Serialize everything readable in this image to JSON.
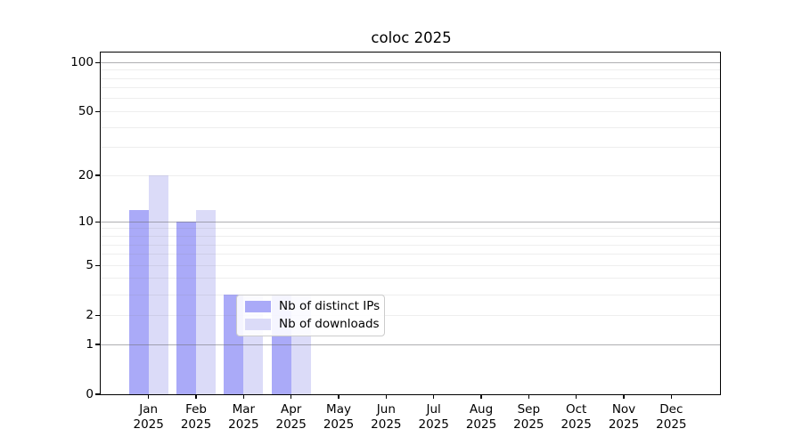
{
  "chart_data": {
    "type": "bar",
    "title": "coloc 2025",
    "x_labels": [
      {
        "m": "Jan",
        "y": "2025"
      },
      {
        "m": "Feb",
        "y": "2025"
      },
      {
        "m": "Mar",
        "y": "2025"
      },
      {
        "m": "Apr",
        "y": "2025"
      },
      {
        "m": "May",
        "y": "2025"
      },
      {
        "m": "Jun",
        "y": "2025"
      },
      {
        "m": "Jul",
        "y": "2025"
      },
      {
        "m": "Aug",
        "y": "2025"
      },
      {
        "m": "Sep",
        "y": "2025"
      },
      {
        "m": "Oct",
        "y": "2025"
      },
      {
        "m": "Nov",
        "y": "2025"
      },
      {
        "m": "Dec",
        "y": "2025"
      }
    ],
    "series": [
      {
        "name": "Nb of distinct IPs",
        "color": "#aaaaf8",
        "values": [
          12,
          10,
          3,
          3,
          0,
          0,
          0,
          0,
          0,
          0,
          0,
          0
        ]
      },
      {
        "name": "Nb of downloads",
        "color": "#dbdbf8",
        "values": [
          20,
          12,
          3,
          3,
          0,
          0,
          0,
          0,
          0,
          0,
          0,
          0
        ]
      }
    ],
    "y_scale": "log10(1+value)",
    "ylim": [
      0,
      115
    ],
    "y_ticks": [
      {
        "v": 0,
        "label": "0"
      },
      {
        "v": 1,
        "label": "1"
      },
      {
        "v": 2,
        "label": "2"
      },
      {
        "v": 5,
        "label": "5"
      },
      {
        "v": 10,
        "label": "10"
      },
      {
        "v": 20,
        "label": "20"
      },
      {
        "v": 50,
        "label": "50"
      },
      {
        "v": 100,
        "label": "100"
      }
    ],
    "grid_major": [
      1,
      10,
      100
    ],
    "grid_minor": [
      2,
      3,
      4,
      5,
      6,
      7,
      8,
      9,
      20,
      30,
      40,
      50,
      60,
      70,
      80,
      90
    ],
    "grid": "on",
    "legend_position": "lower center",
    "xlabel": "",
    "ylabel": ""
  }
}
